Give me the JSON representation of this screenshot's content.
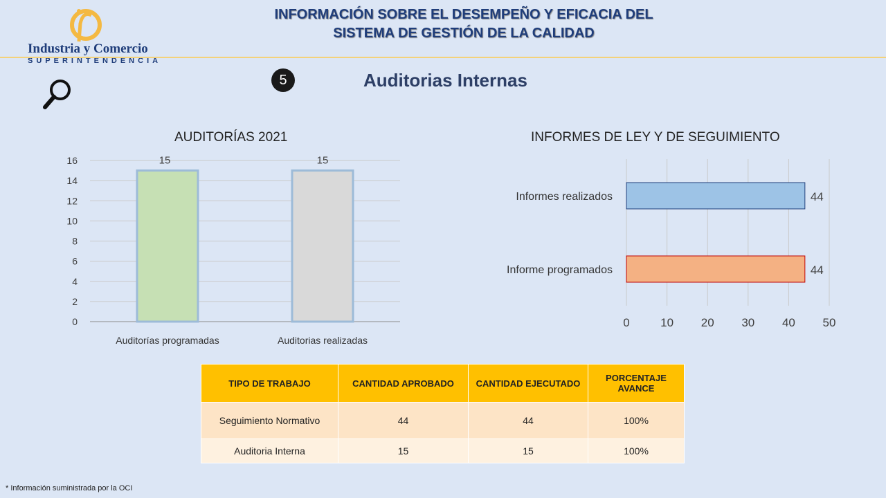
{
  "logo": {
    "name": "Industria y Comercio",
    "subtitle": "SUPERINTENDENCIA"
  },
  "header": {
    "title_line1": "INFORMACIÓN SOBRE EL DESEMPEÑO Y EFICACIA DEL",
    "title_line2": "SISTEMA DE GESTIÓN DE LA  CALIDAD"
  },
  "section": {
    "number": "5",
    "title": "Auditorias Internas"
  },
  "colors": {
    "background": "#dce6f5",
    "header_text": "#1f3d7a",
    "table_header": "#ffc000",
    "bar_programadas": "#c6e0b4",
    "bar_realizadas": "#d9d9d9",
    "bar_informes_realizados": "#9dc3e6",
    "bar_informe_programados": "#f4b183"
  },
  "chart_data": [
    {
      "type": "bar",
      "title": "AUDITORÍAS 2021",
      "categories": [
        "Auditorías programadas",
        "Auditorias realizadas"
      ],
      "values": [
        15,
        15
      ],
      "data_labels": [
        "15",
        "15"
      ],
      "ylim": [
        0,
        16
      ],
      "yticks": [
        "0",
        "2",
        "4",
        "6",
        "8",
        "10",
        "12",
        "14",
        "16"
      ],
      "grid": true
    },
    {
      "type": "bar",
      "orientation": "horizontal",
      "title": "INFORMES DE LEY Y DE SEGUIMIENTO",
      "categories": [
        "Informes realizados",
        "Informe programados"
      ],
      "values": [
        44,
        44
      ],
      "data_labels": [
        "44",
        "44"
      ],
      "xlim": [
        0,
        50
      ],
      "xticks": [
        "0",
        "10",
        "20",
        "30",
        "40",
        "50"
      ],
      "grid": true
    }
  ],
  "table": {
    "headers": [
      "TIPO DE TRABAJO",
      "CANTIDAD APROBADO",
      "CANTIDAD EJECUTADO",
      "PORCENTAJE AVANCE"
    ],
    "rows": [
      [
        "Seguimiento Normativo",
        "44",
        "44",
        "100%"
      ],
      [
        "Auditoria Interna",
        "15",
        "15",
        "100%"
      ]
    ]
  },
  "footnote": "* Información suministrada por la OCI"
}
